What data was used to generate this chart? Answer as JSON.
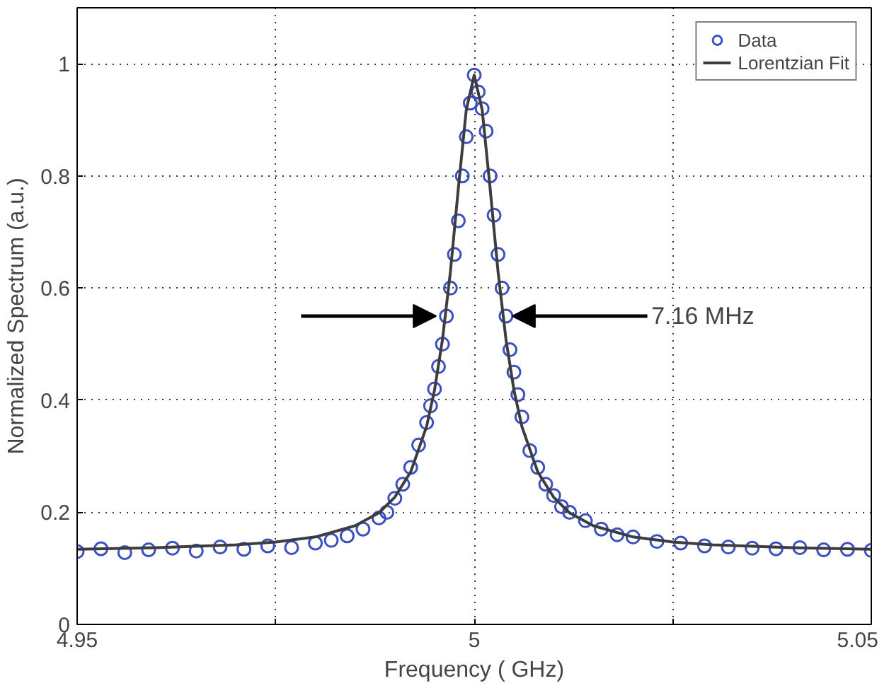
{
  "chart_data": {
    "type": "scatter",
    "xlabel": "Frequency ( GHz)",
    "ylabel": "Normalized Spectrum (a.u.)",
    "xlim": [
      4.95,
      5.05
    ],
    "ylim": [
      0,
      1.1
    ],
    "xticks": [
      4.95,
      {
        "value": 4.975,
        "label": null
      },
      5,
      {
        "value": 5.025,
        "label": null
      },
      5.05
    ],
    "yticks": [
      0,
      0.2,
      0.4,
      0.6,
      0.8,
      1
    ],
    "grid": true,
    "legend": "top right",
    "marker": "circle",
    "annotations": [
      {
        "text": "7.16 MHz",
        "x": 5.0036,
        "y": 0.55
      }
    ],
    "series": [
      {
        "name": "Data",
        "color": "#3a4fc0",
        "x": [
          4.95,
          4.953,
          4.956,
          4.959,
          4.962,
          4.965,
          4.968,
          4.971,
          4.974,
          4.977,
          4.98,
          4.982,
          4.984,
          4.986,
          4.988,
          4.989,
          4.99,
          4.991,
          4.992,
          4.993,
          4.994,
          4.9945,
          4.995,
          4.9955,
          4.996,
          4.9965,
          4.997,
          4.9975,
          4.998,
          4.9985,
          4.999,
          4.9995,
          5.0,
          5.0005,
          5.001,
          5.0015,
          5.002,
          5.0025,
          5.003,
          5.0035,
          5.004,
          5.0045,
          5.005,
          5.0055,
          5.006,
          5.007,
          5.008,
          5.009,
          5.01,
          5.011,
          5.012,
          5.014,
          5.016,
          5.018,
          5.02,
          5.023,
          5.026,
          5.029,
          5.032,
          5.035,
          5.038,
          5.041,
          5.044,
          5.047,
          5.05
        ],
        "values": [
          0.13,
          0.135,
          0.128,
          0.133,
          0.136,
          0.131,
          0.138,
          0.134,
          0.14,
          0.137,
          0.145,
          0.15,
          0.158,
          0.17,
          0.19,
          0.2,
          0.225,
          0.25,
          0.28,
          0.32,
          0.36,
          0.39,
          0.42,
          0.46,
          0.5,
          0.55,
          0.6,
          0.66,
          0.72,
          0.8,
          0.87,
          0.93,
          0.98,
          0.95,
          0.92,
          0.88,
          0.8,
          0.73,
          0.66,
          0.6,
          0.55,
          0.49,
          0.45,
          0.41,
          0.37,
          0.31,
          0.28,
          0.25,
          0.23,
          0.21,
          0.2,
          0.185,
          0.17,
          0.16,
          0.156,
          0.148,
          0.145,
          0.14,
          0.138,
          0.136,
          0.135,
          0.137,
          0.133,
          0.134,
          0.132
        ]
      },
      {
        "name": "Lorentzian Fit",
        "type": "line",
        "color": "#3d3d3d",
        "marker": "none",
        "x": [
          4.95,
          4.96,
          4.97,
          4.975,
          4.98,
          4.985,
          4.988,
          4.99,
          4.992,
          4.994,
          4.995,
          4.996,
          4.997,
          4.998,
          4.999,
          5.0,
          5.001,
          5.002,
          5.003,
          5.004,
          5.005,
          5.006,
          5.008,
          5.01,
          5.012,
          5.015,
          5.02,
          5.025,
          5.03,
          5.04,
          5.05
        ],
        "values": [
          0.134,
          0.137,
          0.142,
          0.147,
          0.156,
          0.176,
          0.199,
          0.227,
          0.272,
          0.353,
          0.418,
          0.508,
          0.629,
          0.778,
          0.918,
          0.98,
          0.918,
          0.778,
          0.629,
          0.508,
          0.418,
          0.353,
          0.272,
          0.227,
          0.199,
          0.176,
          0.156,
          0.147,
          0.142,
          0.137,
          0.134
        ]
      }
    ]
  }
}
